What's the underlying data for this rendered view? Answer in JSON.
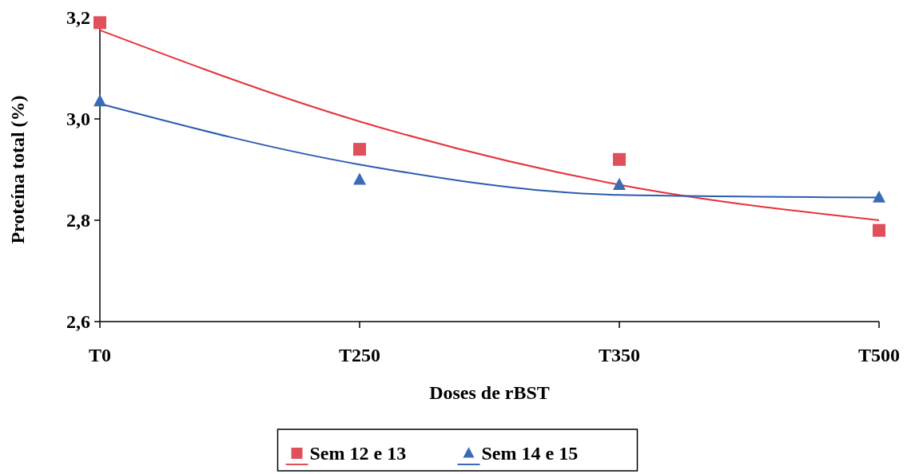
{
  "chart_data": {
    "type": "scatter",
    "xlabel": "Doses de rBST",
    "ylabel": "Proteína total (%)",
    "categories": [
      "T0",
      "T250",
      "T350",
      "T500"
    ],
    "ylim": [
      2.6,
      3.2
    ],
    "yticks": [
      {
        "value": 2.6,
        "label": "2,6"
      },
      {
        "value": 2.8,
        "label": "2,8"
      },
      {
        "value": 3.0,
        "label": "3,0"
      },
      {
        "value": 3.2,
        "label": "3,2"
      }
    ],
    "grid": false,
    "legend": "bottom",
    "series": [
      {
        "name": "Sem 12 e 13",
        "marker": "square",
        "color": "#e0505a",
        "values": [
          3.19,
          2.94,
          2.92,
          2.78
        ]
      },
      {
        "name": "Sem 14 e 15",
        "marker": "triangle",
        "color": "#3a6bb5",
        "values": [
          3.035,
          2.88,
          2.87,
          2.845
        ]
      },
      {
        "type": "line",
        "color": "#e8303a",
        "values": [
          3.175,
          2.995,
          2.87,
          2.8
        ]
      },
      {
        "type": "line",
        "color": "#2a5cb0",
        "values": [
          3.03,
          2.91,
          2.85,
          2.845
        ]
      }
    ]
  }
}
